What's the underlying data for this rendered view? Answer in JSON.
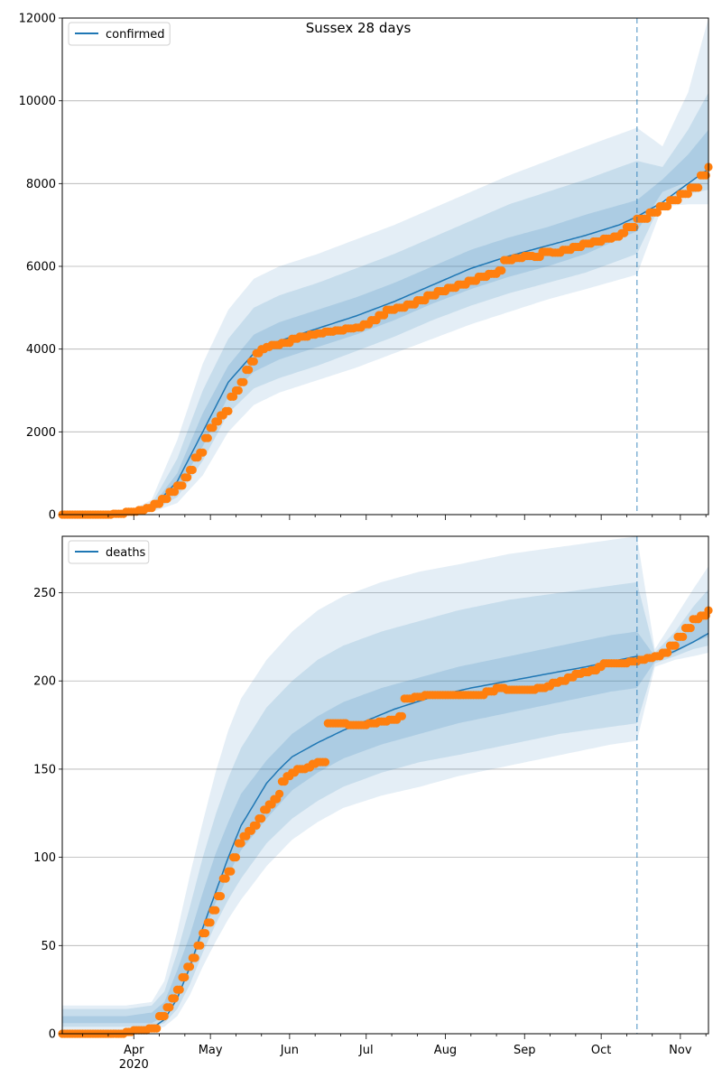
{
  "title": "Sussex 28 days",
  "colors": {
    "model": "#1f77b4",
    "observed": "#ff7f0e",
    "grid": "#b0b0b0"
  },
  "chart_data": [
    {
      "type": "line",
      "legend": "confirmed",
      "legend_position": "top-left",
      "grid": "y",
      "ylim": [
        0,
        12000
      ],
      "yticks": [
        0,
        2000,
        4000,
        6000,
        8000,
        10000,
        12000
      ],
      "xlim_day": [
        0,
        253
      ],
      "forecast_start_day": 225,
      "model_knots": [
        [
          0,
          0
        ],
        [
          25,
          15
        ],
        [
          35,
          150
        ],
        [
          45,
          800
        ],
        [
          55,
          2000
        ],
        [
          65,
          3200
        ],
        [
          75,
          3900
        ],
        [
          85,
          4200
        ],
        [
          100,
          4500
        ],
        [
          115,
          4800
        ],
        [
          130,
          5150
        ],
        [
          145,
          5550
        ],
        [
          160,
          5950
        ],
        [
          175,
          6250
        ],
        [
          190,
          6500
        ],
        [
          205,
          6750
        ],
        [
          218,
          7000
        ],
        [
          225,
          7200
        ],
        [
          235,
          7550
        ],
        [
          245,
          8000
        ],
        [
          253,
          8350
        ]
      ],
      "band_knots": [
        [
          0,
          0,
          0,
          0,
          0,
          0,
          0
        ],
        [
          25,
          5,
          8,
          12,
          18,
          25,
          35
        ],
        [
          35,
          60,
          80,
          110,
          190,
          260,
          360
        ],
        [
          45,
          280,
          420,
          600,
          1000,
          1350,
          1800
        ],
        [
          55,
          950,
          1300,
          1650,
          2450,
          3000,
          3650
        ],
        [
          65,
          2000,
          2450,
          2850,
          3600,
          4250,
          4950
        ],
        [
          75,
          2650,
          3050,
          3450,
          4350,
          5000,
          5700
        ],
        [
          85,
          2950,
          3300,
          3750,
          4650,
          5300,
          6000
        ],
        [
          100,
          3250,
          3600,
          4050,
          4950,
          5600,
          6300
        ],
        [
          115,
          3550,
          3950,
          4350,
          5250,
          5950,
          6650
        ],
        [
          130,
          3900,
          4300,
          4700,
          5600,
          6300,
          7000
        ],
        [
          145,
          4250,
          4700,
          5100,
          6000,
          6700,
          7400
        ],
        [
          160,
          4600,
          5050,
          5450,
          6400,
          7100,
          7800
        ],
        [
          175,
          4900,
          5350,
          5750,
          6700,
          7500,
          8200
        ],
        [
          190,
          5200,
          5600,
          6000,
          6950,
          7800,
          8550
        ],
        [
          205,
          5450,
          5850,
          6300,
          7250,
          8100,
          8900
        ],
        [
          225,
          5800,
          6300,
          6850,
          7600,
          8550,
          9350
        ],
        [
          235,
          7450,
          7600,
          7800,
          8100,
          8400,
          8900
        ],
        [
          245,
          7500,
          7750,
          8050,
          8700,
          9300,
          10200
        ],
        [
          253,
          7500,
          7850,
          8300,
          9300,
          10200,
          12000
        ]
      ],
      "observed_steps": [
        [
          0,
          0
        ],
        [
          20,
          20
        ],
        [
          25,
          70
        ],
        [
          30,
          110
        ],
        [
          33,
          160
        ],
        [
          36,
          260
        ],
        [
          39,
          380
        ],
        [
          42,
          550
        ],
        [
          45,
          700
        ],
        [
          48,
          900
        ],
        [
          50,
          1080
        ],
        [
          52,
          1380
        ],
        [
          54,
          1500
        ],
        [
          56,
          1850
        ],
        [
          58,
          2100
        ],
        [
          60,
          2250
        ],
        [
          62,
          2400
        ],
        [
          64,
          2500
        ],
        [
          66,
          2850
        ],
        [
          68,
          3000
        ],
        [
          70,
          3200
        ],
        [
          72,
          3500
        ],
        [
          74,
          3700
        ],
        [
          76,
          3900
        ],
        [
          78,
          4000
        ],
        [
          80,
          4050
        ],
        [
          82,
          4100
        ],
        [
          86,
          4150
        ],
        [
          90,
          4250
        ],
        [
          93,
          4300
        ],
        [
          97,
          4350
        ],
        [
          100,
          4380
        ],
        [
          103,
          4420
        ],
        [
          107,
          4450
        ],
        [
          111,
          4500
        ],
        [
          115,
          4520
        ],
        [
          118,
          4600
        ],
        [
          121,
          4700
        ],
        [
          124,
          4820
        ],
        [
          127,
          4950
        ],
        [
          131,
          5000
        ],
        [
          135,
          5080
        ],
        [
          139,
          5180
        ],
        [
          143,
          5300
        ],
        [
          147,
          5400
        ],
        [
          151,
          5480
        ],
        [
          155,
          5560
        ],
        [
          159,
          5650
        ],
        [
          163,
          5750
        ],
        [
          167,
          5820
        ],
        [
          171,
          5900
        ],
        [
          173,
          6150
        ],
        [
          177,
          6200
        ],
        [
          181,
          6250
        ],
        [
          185,
          6230
        ],
        [
          188,
          6350
        ],
        [
          192,
          6330
        ],
        [
          196,
          6400
        ],
        [
          200,
          6470
        ],
        [
          204,
          6550
        ],
        [
          208,
          6600
        ],
        [
          212,
          6670
        ],
        [
          216,
          6720
        ],
        [
          219,
          6800
        ],
        [
          221,
          6950
        ],
        [
          225,
          7150
        ],
        [
          230,
          7300
        ],
        [
          234,
          7450
        ],
        [
          238,
          7600
        ],
        [
          242,
          7750
        ],
        [
          246,
          7900
        ],
        [
          250,
          8200
        ],
        [
          253,
          8400
        ]
      ]
    },
    {
      "type": "line",
      "legend": "deaths",
      "legend_position": "top-left",
      "grid": "y",
      "ylim": [
        0,
        282
      ],
      "yticks": [
        0,
        50,
        100,
        150,
        200,
        250
      ],
      "xlim_day": [
        0,
        253
      ],
      "forecast_start_day": 225,
      "x_tick_labels": [
        "Apr\n2020",
        "May",
        "Jun",
        "Jul",
        "Aug",
        "Sep",
        "Oct",
        "Nov"
      ],
      "x_tick_days": [
        28,
        58,
        89,
        119,
        150,
        181,
        211,
        242
      ],
      "model_knots": [
        [
          0,
          0
        ],
        [
          30,
          1
        ],
        [
          35,
          3
        ],
        [
          40,
          8
        ],
        [
          45,
          20
        ],
        [
          50,
          38
        ],
        [
          55,
          60
        ],
        [
          60,
          80
        ],
        [
          65,
          100
        ],
        [
          70,
          118
        ],
        [
          75,
          130
        ],
        [
          80,
          142
        ],
        [
          85,
          150
        ],
        [
          90,
          157
        ],
        [
          100,
          165
        ],
        [
          110,
          172
        ],
        [
          120,
          178
        ],
        [
          130,
          184
        ],
        [
          145,
          191
        ],
        [
          160,
          196
        ],
        [
          175,
          200
        ],
        [
          190,
          204
        ],
        [
          205,
          208
        ],
        [
          215,
          211
        ],
        [
          225,
          214
        ],
        [
          232,
          212
        ],
        [
          240,
          217
        ],
        [
          247,
          222
        ],
        [
          253,
          227
        ]
      ],
      "band_knots": [
        [
          0,
          2,
          4,
          6,
          10,
          14,
          16
        ],
        [
          25,
          2,
          4,
          6,
          10,
          14,
          16
        ],
        [
          35,
          2,
          4,
          6,
          12,
          16,
          18
        ],
        [
          40,
          4,
          6,
          10,
          18,
          24,
          30
        ],
        [
          45,
          10,
          14,
          20,
          36,
          46,
          58
        ],
        [
          50,
          22,
          28,
          36,
          56,
          72,
          90
        ],
        [
          55,
          38,
          46,
          56,
          80,
          100,
          120
        ],
        [
          60,
          52,
          62,
          74,
          102,
          124,
          148
        ],
        [
          65,
          65,
          76,
          90,
          120,
          145,
          172
        ],
        [
          70,
          76,
          88,
          104,
          136,
          162,
          190
        ],
        [
          80,
          95,
          108,
          122,
          155,
          185,
          212
        ],
        [
          90,
          110,
          122,
          138,
          170,
          200,
          228
        ],
        [
          100,
          120,
          132,
          148,
          180,
          212,
          240
        ],
        [
          110,
          128,
          140,
          156,
          188,
          220,
          248
        ],
        [
          125,
          135,
          148,
          164,
          196,
          228,
          256
        ],
        [
          140,
          140,
          154,
          170,
          202,
          234,
          262
        ],
        [
          155,
          146,
          158,
          176,
          208,
          240,
          266
        ],
        [
          175,
          152,
          164,
          182,
          214,
          246,
          272
        ],
        [
          195,
          158,
          170,
          188,
          220,
          250,
          276
        ],
        [
          215,
          164,
          174,
          194,
          226,
          254,
          280
        ],
        [
          225,
          166,
          176,
          196,
          228,
          256,
          282
        ],
        [
          232,
          208,
          210,
          211,
          214,
          216,
          218
        ],
        [
          240,
          212,
          214,
          216,
          222,
          228,
          236
        ],
        [
          247,
          214,
          218,
          222,
          232,
          242,
          252
        ],
        [
          253,
          216,
          220,
          225,
          240,
          252,
          265
        ]
      ],
      "observed_steps": [
        [
          0,
          0
        ],
        [
          20,
          0
        ],
        [
          25,
          1
        ],
        [
          28,
          2
        ],
        [
          34,
          3
        ],
        [
          37,
          3
        ],
        [
          38,
          10
        ],
        [
          41,
          15
        ],
        [
          43,
          20
        ],
        [
          45,
          25
        ],
        [
          47,
          32
        ],
        [
          49,
          38
        ],
        [
          51,
          43
        ],
        [
          53,
          50
        ],
        [
          55,
          57
        ],
        [
          57,
          63
        ],
        [
          59,
          70
        ],
        [
          61,
          78
        ],
        [
          63,
          88
        ],
        [
          65,
          92
        ],
        [
          67,
          100
        ],
        [
          69,
          108
        ],
        [
          71,
          112
        ],
        [
          73,
          115
        ],
        [
          75,
          118
        ],
        [
          77,
          122
        ],
        [
          79,
          127
        ],
        [
          81,
          130
        ],
        [
          83,
          133
        ],
        [
          85,
          136
        ],
        [
          86,
          143
        ],
        [
          88,
          146
        ],
        [
          90,
          148
        ],
        [
          92,
          150
        ],
        [
          94,
          150
        ],
        [
          96,
          151
        ],
        [
          98,
          153
        ],
        [
          100,
          154
        ],
        [
          102,
          154
        ],
        [
          104,
          176
        ],
        [
          108,
          176
        ],
        [
          112,
          175
        ],
        [
          116,
          175
        ],
        [
          120,
          176
        ],
        [
          124,
          177
        ],
        [
          128,
          178
        ],
        [
          132,
          180
        ],
        [
          134,
          190
        ],
        [
          138,
          191
        ],
        [
          142,
          192
        ],
        [
          146,
          192
        ],
        [
          150,
          192
        ],
        [
          154,
          192
        ],
        [
          158,
          192
        ],
        [
          162,
          192
        ],
        [
          166,
          194
        ],
        [
          170,
          196
        ],
        [
          174,
          195
        ],
        [
          178,
          195
        ],
        [
          182,
          195
        ],
        [
          186,
          196
        ],
        [
          190,
          197
        ],
        [
          192,
          199
        ],
        [
          195,
          200
        ],
        [
          198,
          202
        ],
        [
          201,
          204
        ],
        [
          204,
          205
        ],
        [
          207,
          206
        ],
        [
          210,
          208
        ],
        [
          212,
          210
        ],
        [
          217,
          210
        ],
        [
          222,
          211
        ],
        [
          226,
          212
        ],
        [
          229,
          213
        ],
        [
          232,
          214
        ],
        [
          235,
          216
        ],
        [
          238,
          220
        ],
        [
          241,
          225
        ],
        [
          244,
          230
        ],
        [
          247,
          235
        ],
        [
          250,
          237
        ],
        [
          253,
          240
        ]
      ]
    }
  ]
}
